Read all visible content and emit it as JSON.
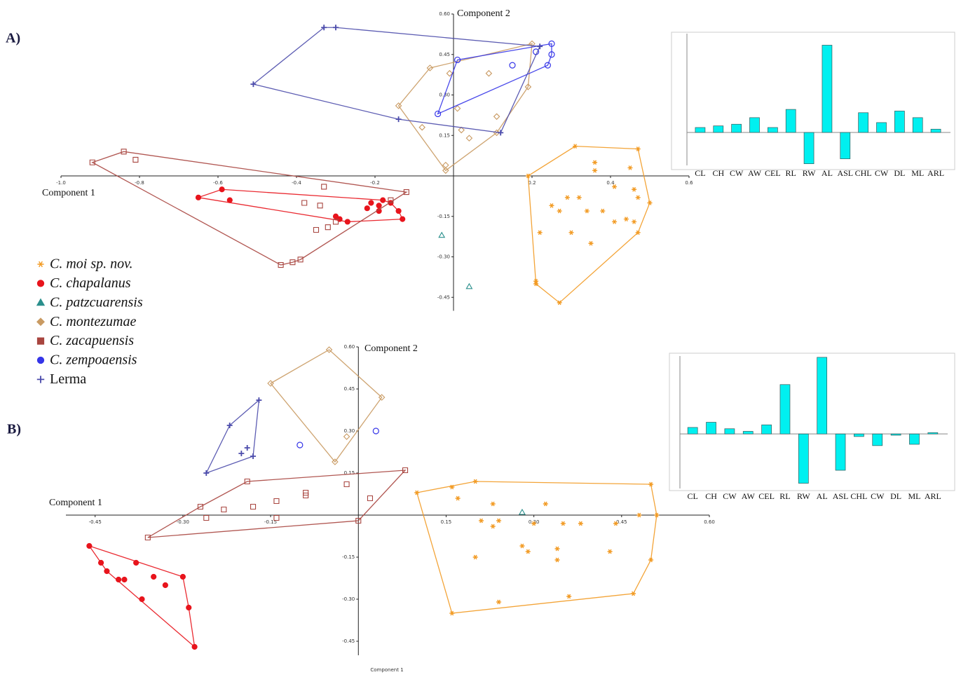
{
  "chart_data": [
    {
      "type": "scatter",
      "panel": "A)",
      "xlabel": "Component 1",
      "ylabel": "Component 2",
      "xlim": [
        -1.0,
        0.6
      ],
      "ylim": [
        -0.5,
        0.6
      ],
      "xticks": [
        {
          "value": -1.0,
          "label": "-1.0"
        },
        -0.8,
        -0.6,
        -0.4,
        -0.2,
        0.2,
        0.4,
        0.6
      ],
      "yticks": [
        {
          "value": 0.6,
          "label": "0.60"
        },
        0.45,
        {
          "value": 0.3,
          "label": "0.30"
        },
        0.15,
        -0.15,
        {
          "value": -0.3,
          "label": "-0.30"
        },
        -0.45
      ],
      "series": [
        {
          "name": "C. moi sp. nov.",
          "color": "#f29a22",
          "marker": "asterisk",
          "x": [
            0.31,
            0.47,
            0.36,
            0.36,
            0.45,
            0.19,
            0.41,
            0.46,
            0.47,
            0.5,
            0.25,
            0.32,
            0.29,
            0.34,
            0.38,
            0.27,
            0.41,
            0.44,
            0.46,
            0.47,
            0.22,
            0.3,
            0.35,
            0.21,
            0.21,
            0.27
          ],
          "y": [
            0.11,
            0.1,
            0.05,
            0.02,
            0.03,
            0.0,
            -0.04,
            -0.05,
            -0.08,
            -0.1,
            -0.11,
            -0.08,
            -0.08,
            -0.13,
            -0.13,
            -0.13,
            -0.17,
            -0.16,
            -0.17,
            -0.21,
            -0.21,
            -0.21,
            -0.25,
            -0.39,
            -0.4,
            -0.47
          ]
        },
        {
          "name": "C. chapalanus",
          "color": "#e8141c",
          "marker": "dot",
          "x": [
            -0.65,
            -0.59,
            -0.57,
            -0.3,
            -0.29,
            -0.27,
            -0.22,
            -0.21,
            -0.19,
            -0.18,
            -0.16,
            -0.14,
            -0.13,
            -0.19
          ],
          "y": [
            -0.08,
            -0.05,
            -0.09,
            -0.15,
            -0.16,
            -0.17,
            -0.12,
            -0.1,
            -0.11,
            -0.09,
            -0.1,
            -0.13,
            -0.16,
            -0.13
          ]
        },
        {
          "name": "C. patzcuarensis",
          "color": "#2a8f8c",
          "marker": "triangle",
          "x": [
            -0.03,
            0.04
          ],
          "y": [
            -0.22,
            -0.41
          ]
        },
        {
          "name": "C. montezumae",
          "color": "#c99a62",
          "marker": "diamond",
          "x": [
            -0.06,
            0.2,
            -0.01,
            0.09,
            0.19,
            -0.14,
            0.01,
            0.11,
            -0.08,
            0.02,
            0.04,
            0.11,
            -0.02,
            -0.02
          ],
          "y": [
            0.4,
            0.49,
            0.38,
            0.38,
            0.33,
            0.26,
            0.25,
            0.22,
            0.18,
            0.17,
            0.14,
            0.16,
            0.04,
            0.02
          ]
        },
        {
          "name": "C. zacapuensis",
          "color": "#a8453f",
          "marker": "square",
          "x": [
            -0.84,
            -0.81,
            -0.92,
            -0.33,
            -0.38,
            -0.34,
            -0.12,
            -0.16,
            -0.35,
            -0.32,
            -0.3,
            -0.44,
            -0.41,
            -0.39
          ],
          "y": [
            0.09,
            0.06,
            0.05,
            -0.04,
            -0.1,
            -0.11,
            -0.06,
            -0.09,
            -0.2,
            -0.19,
            -0.17,
            -0.33,
            -0.32,
            -0.31
          ]
        },
        {
          "name": "C. zempoaensis",
          "color": "#3535e8",
          "marker": "circle",
          "x": [
            0.01,
            -0.04,
            0.15,
            0.21,
            0.25,
            0.25,
            0.24
          ],
          "y": [
            0.43,
            0.23,
            0.41,
            0.46,
            0.49,
            0.45,
            0.41
          ]
        },
        {
          "name": "Lerma",
          "color": "#4b4bab",
          "marker": "plus",
          "x": [
            -0.33,
            -0.3,
            -0.51,
            -0.14,
            0.12,
            0.22
          ],
          "y": [
            0.55,
            0.55,
            0.34,
            0.21,
            0.16,
            0.48
          ]
        }
      ]
    },
    {
      "type": "bar",
      "categories": [
        "CL",
        "CH",
        "CW",
        "AW",
        "CEL",
        "RL",
        "RW",
        "AL",
        "ASL",
        "CHL",
        "CW",
        "DL",
        "ML",
        "ARL"
      ],
      "values": [
        0.03,
        0.04,
        0.05,
        0.09,
        0.03,
        0.14,
        -0.19,
        0.53,
        -0.16,
        0.12,
        0.06,
        0.13,
        0.09,
        0.02
      ],
      "color": "#00f0f0",
      "ylim": [
        -0.2,
        0.6
      ]
    },
    {
      "type": "scatter",
      "panel": "B)",
      "xlabel": "Component 1",
      "ylabel": "Component 2",
      "caption": "Component 1",
      "xlim": [
        -0.5,
        0.6
      ],
      "ylim": [
        -0.5,
        0.6
      ],
      "xticks": [
        -0.45,
        {
          "value": -0.3,
          "label": "-0.30"
        },
        -0.15,
        0.15,
        {
          "value": 0.3,
          "label": "0.30"
        },
        0.45,
        {
          "value": 0.6,
          "label": "0.60"
        }
      ],
      "yticks": [
        {
          "value": 0.6,
          "label": "0.60"
        },
        0.45,
        {
          "value": 0.3,
          "label": "0.30"
        },
        0.15,
        -0.15,
        {
          "value": -0.3,
          "label": "-0.30"
        },
        -0.45
      ],
      "series": [
        {
          "color": "#f29a22",
          "marker": "asterisk",
          "x": [
            0.1,
            0.16,
            0.2,
            0.17,
            0.5,
            0.23,
            0.21,
            0.24,
            0.23,
            0.32,
            0.3,
            0.35,
            0.38,
            0.44,
            0.48,
            0.51,
            0.28,
            0.29,
            0.2,
            0.34,
            0.34,
            0.43,
            0.5,
            0.24,
            0.36,
            0.47,
            0.16
          ],
          "y": [
            0.08,
            0.1,
            0.12,
            0.06,
            0.11,
            0.04,
            -0.02,
            -0.02,
            -0.04,
            0.04,
            -0.03,
            -0.03,
            -0.03,
            -0.03,
            0.0,
            0.0,
            -0.11,
            -0.13,
            -0.15,
            -0.12,
            -0.16,
            -0.13,
            -0.16,
            -0.31,
            -0.29,
            -0.28,
            -0.35
          ]
        },
        {
          "color": "#e8141c",
          "marker": "dot",
          "x": [
            -0.46,
            -0.44,
            -0.43,
            -0.41,
            -0.4,
            -0.38,
            -0.35,
            -0.33,
            -0.37,
            -0.3,
            -0.29,
            -0.28
          ],
          "y": [
            -0.11,
            -0.17,
            -0.2,
            -0.23,
            -0.23,
            -0.17,
            -0.22,
            -0.25,
            -0.3,
            -0.22,
            -0.33,
            -0.47
          ]
        },
        {
          "color": "#2a8f8c",
          "marker": "triangle",
          "x": [
            0.28
          ],
          "y": [
            0.01
          ]
        },
        {
          "color": "#c99a62",
          "marker": "diamond",
          "x": [
            -0.05,
            -0.15,
            0.04,
            -0.02,
            -0.04
          ],
          "y": [
            0.59,
            0.47,
            0.42,
            0.28,
            0.19
          ]
        },
        {
          "color": "#a8453f",
          "marker": "square",
          "x": [
            -0.36,
            -0.27,
            -0.19,
            -0.26,
            -0.23,
            -0.18,
            -0.14,
            -0.14,
            -0.09,
            -0.09,
            -0.02,
            0.02,
            0.08,
            0.0
          ],
          "y": [
            -0.08,
            0.03,
            0.12,
            -0.01,
            0.02,
            0.03,
            0.05,
            -0.01,
            0.08,
            0.07,
            0.11,
            0.06,
            0.16,
            -0.02
          ]
        },
        {
          "color": "#3535e8",
          "marker": "circle",
          "x": [
            -0.1,
            0.03
          ],
          "y": [
            0.25,
            0.3
          ]
        },
        {
          "color": "#4b4bab",
          "marker": "plus",
          "x": [
            -0.17,
            -0.22,
            -0.26,
            -0.18,
            -0.19,
            -0.2
          ],
          "y": [
            0.41,
            0.32,
            0.15,
            0.21,
            0.24,
            0.22
          ]
        }
      ]
    },
    {
      "type": "bar",
      "categories": [
        "CL",
        "CH",
        "CW",
        "AW",
        "CEL",
        "RL",
        "RW",
        "AL",
        "ASL",
        "CHL",
        "CW",
        "DL",
        "ML",
        "ARL"
      ],
      "values": [
        0.05,
        0.09,
        0.04,
        0.02,
        0.07,
        0.38,
        -0.38,
        0.59,
        -0.28,
        -0.02,
        -0.09,
        -0.01,
        -0.08,
        0.01
      ],
      "color": "#00f0f0",
      "ylim": [
        -0.42,
        0.6
      ]
    }
  ]
}
